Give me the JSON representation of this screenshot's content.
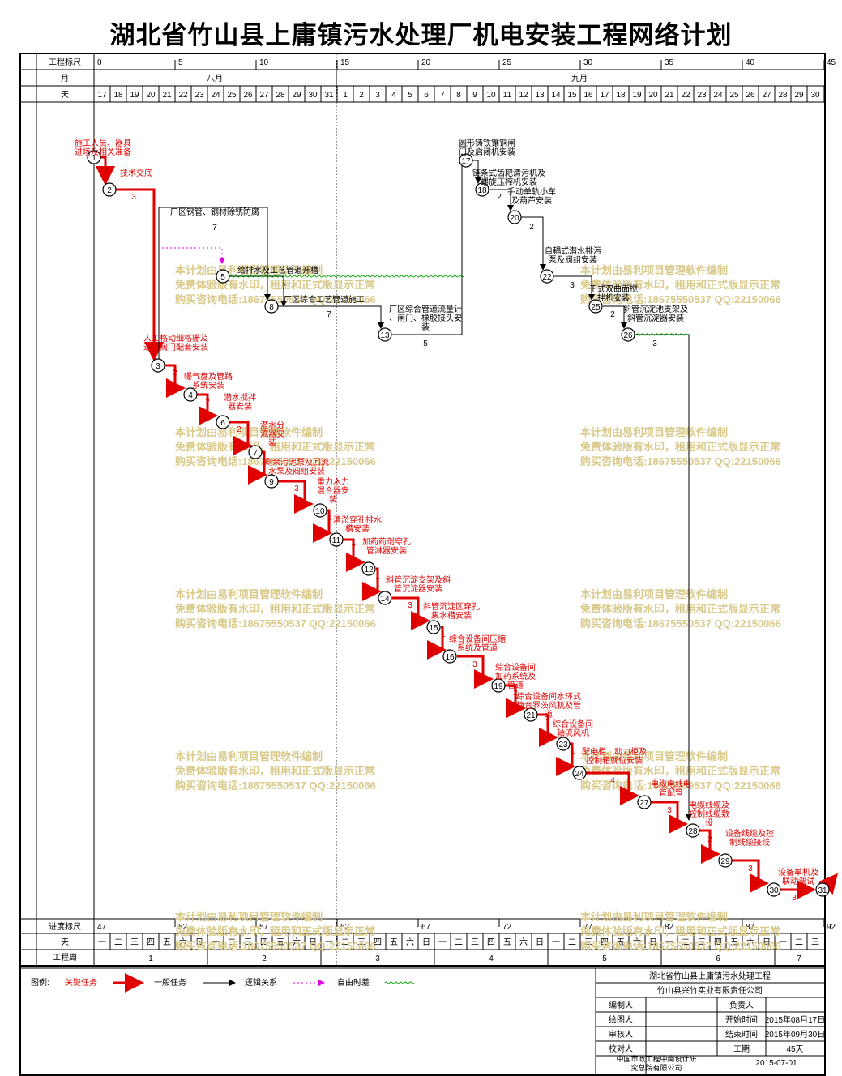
{
  "title": "湖北省竹山县上庸镇污水处理厂机电安装工程网络计划",
  "header": {
    "scale_label": "工程标尺",
    "month_label": "月",
    "day_label": "天",
    "scale_ticks": [
      "0",
      "5",
      "10",
      "15",
      "20",
      "25",
      "30",
      "35",
      "40",
      "45"
    ],
    "months": [
      "八月",
      "九月"
    ],
    "days": [
      "17",
      "18",
      "19",
      "20",
      "21",
      "22",
      "23",
      "24",
      "25",
      "26",
      "27",
      "28",
      "29",
      "30",
      "31",
      "1",
      "2",
      "3",
      "4",
      "5",
      "6",
      "7",
      "8",
      "9",
      "10",
      "11",
      "12",
      "13",
      "14",
      "15",
      "16",
      "17",
      "18",
      "19",
      "20",
      "21",
      "22",
      "23",
      "24",
      "25",
      "26",
      "27",
      "28",
      "29",
      "30"
    ]
  },
  "footer_scale": {
    "progress_label": "进度标尺",
    "day_label": "天",
    "week_label": "工程周",
    "progress_ticks": [
      "47",
      "52",
      "57",
      "62",
      "67",
      "72",
      "77",
      "82",
      "87",
      "92"
    ],
    "weekdays": [
      "一",
      "二",
      "三",
      "四",
      "五",
      "六",
      "日",
      "一",
      "二",
      "三",
      "四",
      "五",
      "六",
      "日",
      "一",
      "二",
      "三",
      "四",
      "五",
      "六",
      "日",
      "一",
      "二",
      "三",
      "四",
      "五",
      "六",
      "日",
      "一",
      "二",
      "三",
      "四",
      "五",
      "六",
      "日",
      "一",
      "二",
      "三",
      "四",
      "五",
      "六",
      "日",
      "一",
      "二",
      "三"
    ],
    "weeks": [
      "1",
      "2",
      "3",
      "4",
      "5",
      "6",
      "7"
    ]
  },
  "legend": {
    "label": "图例:",
    "critical": "关键任务",
    "normal": "一般任务",
    "logic": "逻辑关系",
    "free_float": "自由时差",
    "critical_color": "#e00000",
    "logic_color": "#e000e0",
    "float_color": "#00a000"
  },
  "info": {
    "project": "湖北省竹山县上庸镇污水处理工程",
    "company": "竹山县兴竹实业有限责任公司",
    "compiler_label": "编制人",
    "manager_label": "负责人",
    "drawer_label": "绘图人",
    "start_label": "开始时间",
    "start_value": "2015年08月17日",
    "reviewer_label": "审核人",
    "end_label": "结束时间",
    "end_value": "2015年09月30日",
    "checker_label": "校对人",
    "duration_label": "工期",
    "duration_value": "45天",
    "institute": "中国市政工程中南设计研究总院有限公司",
    "date": "2015-07-01"
  },
  "watermark": [
    "本计划由易利项目管理软件编制",
    "免费体验版有水印，租用和正式版显示正常",
    "购买咨询电话:18675550537 QQ:22150066"
  ],
  "nodes": [
    {
      "id": "1",
      "x": 0,
      "y": 0
    },
    {
      "id": "2",
      "x": 1,
      "y": 1
    },
    {
      "id": "3",
      "x": 4,
      "y": 0
    },
    {
      "id": "4",
      "x": 6,
      "y": 0
    },
    {
      "id": "5",
      "x": 8,
      "y": 0
    },
    {
      "id": "6",
      "x": 8,
      "y": 0
    },
    {
      "id": "7",
      "x": 10,
      "y": 0
    },
    {
      "id": "8",
      "x": 11,
      "y": 0
    },
    {
      "id": "9",
      "x": 11,
      "y": 0
    },
    {
      "id": "10",
      "x": 14,
      "y": 0
    },
    {
      "id": "11",
      "x": 15,
      "y": 0
    },
    {
      "id": "12",
      "x": 17,
      "y": 0
    },
    {
      "id": "13",
      "x": 18,
      "y": 0
    },
    {
      "id": "14",
      "x": 18,
      "y": 0
    },
    {
      "id": "15",
      "x": 21,
      "y": 0
    },
    {
      "id": "16",
      "x": 22,
      "y": 0
    },
    {
      "id": "17",
      "x": 23,
      "y": 0
    },
    {
      "id": "18",
      "x": 24,
      "y": 0
    },
    {
      "id": "19",
      "x": 25,
      "y": 0
    },
    {
      "id": "20",
      "x": 26,
      "y": 0
    },
    {
      "id": "21",
      "x": 27,
      "y": 0
    },
    {
      "id": "22",
      "x": 28,
      "y": 0
    },
    {
      "id": "23",
      "x": 29,
      "y": 0
    },
    {
      "id": "24",
      "x": 30,
      "y": 0
    },
    {
      "id": "25",
      "x": 31,
      "y": 0
    },
    {
      "id": "26",
      "x": 33,
      "y": 0
    },
    {
      "id": "27",
      "x": 34,
      "y": 0
    },
    {
      "id": "28",
      "x": 37,
      "y": 0
    },
    {
      "id": "29",
      "x": 39,
      "y": 0
    },
    {
      "id": "30",
      "x": 42,
      "y": 0
    },
    {
      "id": "31",
      "x": 45,
      "y": 0
    }
  ],
  "tasks": [
    {
      "name": "施工人员、器具进场及相关准备",
      "dur": "1",
      "critical": true
    },
    {
      "name": "技术交底",
      "dur": "3",
      "critical": true
    },
    {
      "name": "厂区钢管、钢材除锈防腐",
      "dur": "7",
      "critical": false
    },
    {
      "name": "给排水及工艺管道开槽",
      "dur": "7",
      "critical": false
    },
    {
      "name": "厂区综合工艺管道施工",
      "dur": "7",
      "critical": false
    },
    {
      "name": "厂区综合管道流量计、闸门、橡胶接头安装",
      "dur": "5",
      "critical": false
    },
    {
      "name": "圆形铸铁镶铜闸门及启闭机安装",
      "dur": "",
      "critical": false
    },
    {
      "name": "链条式齿耙清污机及螺旋压榨机安装",
      "dur": "2",
      "critical": false
    },
    {
      "name": "手动单轨小车及葫芦安装",
      "dur": "2",
      "critical": false
    },
    {
      "name": "自耦式潜水排污泵及阀组安装",
      "dur": "3",
      "critical": false
    },
    {
      "name": "干式双曲面搅拌机安装",
      "dur": "2",
      "critical": false
    },
    {
      "name": "斜管沉淀池支架及斜管沉淀器安装",
      "dur": "3",
      "critical": false
    },
    {
      "name": "人工格动细格栅及进水阀门配套安装",
      "dur": "2",
      "critical": true
    },
    {
      "name": "曝气盘及管路系统安装",
      "dur": "2",
      "critical": true
    },
    {
      "name": "潜水搅拌器安装",
      "dur": "2",
      "critical": true
    },
    {
      "name": "潜水分流器安装",
      "dur": "1",
      "critical": true
    },
    {
      "name": "剩余污泥泵及回流水泵及阀组安装",
      "dur": "3",
      "critical": true
    },
    {
      "name": "重力水力混合器安装",
      "dur": "1",
      "critical": true
    },
    {
      "name": "清淤穿孔排水槽安装",
      "dur": "2",
      "critical": true
    },
    {
      "name": "加药药剂穿孔管淋器安装",
      "dur": "1",
      "critical": true
    },
    {
      "name": "斜管沉淀支架及斜管沉淀器安装",
      "dur": "3",
      "critical": true
    },
    {
      "name": "斜管沉淀区穿孔集水槽安装",
      "dur": "1",
      "critical": true
    },
    {
      "name": "综合设备间压缩系统及管道",
      "dur": "3",
      "critical": true
    },
    {
      "name": "综合设备间加药系统及管道",
      "dur": "2",
      "critical": true
    },
    {
      "name": "综合设备间水环式静音罗茨风机及管道",
      "dur": "2",
      "critical": true
    },
    {
      "name": "综合设备间轴流风机",
      "dur": "1",
      "critical": true
    },
    {
      "name": "配电柜、动力柜及控制箱就位安装",
      "dur": "4",
      "critical": true
    },
    {
      "name": "电缆电线电管配管",
      "dur": "3",
      "critical": true
    },
    {
      "name": "电缆线缆及控制线缆敷设",
      "dur": "2",
      "critical": true
    },
    {
      "name": "设备线缆及控制线缆接线",
      "dur": "3",
      "critical": true
    },
    {
      "name": "设备单机及联动调试",
      "dur": "3",
      "critical": true
    }
  ]
}
